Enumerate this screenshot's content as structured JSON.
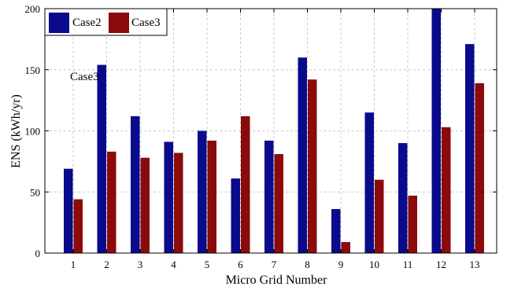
{
  "chart_data": {
    "type": "bar",
    "xlabel": "Micro Grid Number",
    "ylabel": "ENS (kWh/yr)",
    "categories": [
      "1",
      "2",
      "3",
      "4",
      "5",
      "6",
      "7",
      "8",
      "9",
      "10",
      "11",
      "12",
      "13"
    ],
    "series": [
      {
        "name": "Case2",
        "color": "#0a0a8c",
        "values": [
          69,
          154,
          112,
          91,
          100,
          61,
          92,
          160,
          36,
          115,
          90,
          201,
          171
        ]
      },
      {
        "name": "Case3",
        "color": "#8b0a0a",
        "values": [
          44,
          83,
          78,
          82,
          92,
          112,
          81,
          142,
          9,
          60,
          47,
          103,
          139
        ]
      }
    ],
    "ylim": [
      0,
      200
    ],
    "yticks": [
      0,
      50,
      100,
      150,
      200
    ],
    "grid": true,
    "legend_position": "top-left",
    "annotation": "Case3"
  }
}
